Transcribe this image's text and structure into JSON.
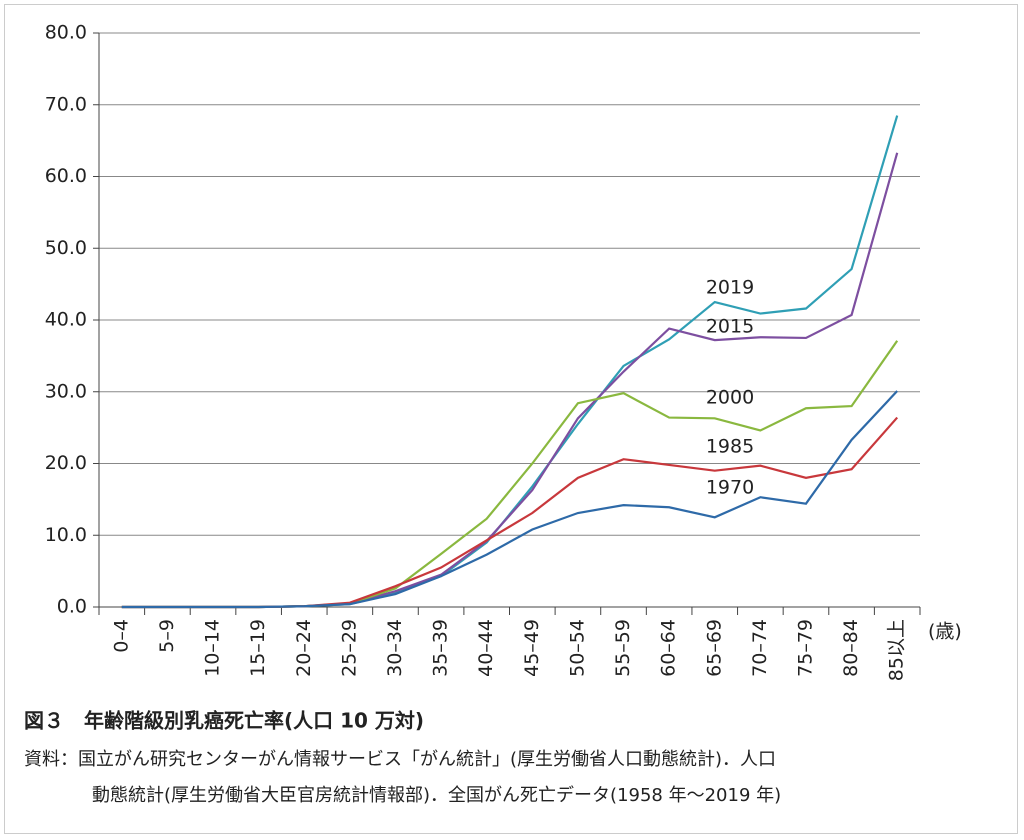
{
  "chart_data": {
    "type": "line",
    "categories": [
      "0–4",
      "5–9",
      "10–14",
      "15–19",
      "20–24",
      "25–29",
      "30–34",
      "35–39",
      "40–44",
      "45–49",
      "50–54",
      "55–59",
      "60–64",
      "65–69",
      "70–74",
      "75–79",
      "80–84",
      "85以上"
    ],
    "x_unit": "(歳)",
    "ylim": [
      0,
      80
    ],
    "yticks": [
      {
        "value": 0,
        "label": "0.0"
      },
      {
        "value": 10,
        "label": "10.0"
      },
      {
        "value": 20,
        "label": "20.0"
      },
      {
        "value": 30,
        "label": "30.0"
      },
      {
        "value": 40,
        "label": "40.0"
      },
      {
        "value": 50,
        "label": "50.0"
      },
      {
        "value": 60,
        "label": "60.0"
      },
      {
        "value": 70,
        "label": "70.0"
      },
      {
        "value": 80,
        "label": "80.0"
      }
    ],
    "grid": true,
    "series": [
      {
        "name": "2019",
        "color": "#2f9fb5",
        "values": [
          0,
          0,
          0,
          0,
          0.1,
          0.4,
          2.0,
          4.3,
          9.0,
          16.8,
          25.5,
          33.6,
          37.3,
          42.5,
          40.9,
          41.6,
          47.1,
          68.5
        ]
      },
      {
        "name": "2015",
        "color": "#7d4fa0",
        "values": [
          0,
          0,
          0,
          0,
          0.1,
          0.5,
          2.2,
          4.5,
          9.2,
          16.3,
          26.3,
          32.8,
          38.8,
          37.2,
          37.6,
          37.5,
          40.7,
          63.3
        ]
      },
      {
        "name": "2000",
        "color": "#8ab83f",
        "values": [
          0,
          0,
          0,
          0,
          0.1,
          0.5,
          2.6,
          7.4,
          12.3,
          20.0,
          28.4,
          29.8,
          26.4,
          26.3,
          24.6,
          27.7,
          28.0,
          37.1
        ]
      },
      {
        "name": "1985",
        "color": "#c8383c",
        "values": [
          0,
          0,
          0,
          0,
          0.1,
          0.6,
          2.9,
          5.5,
          9.3,
          13.1,
          18.0,
          20.6,
          19.8,
          19.0,
          19.7,
          18.0,
          19.2,
          26.4
        ]
      },
      {
        "name": "1970",
        "color": "#2e6aa8",
        "values": [
          0,
          0,
          0,
          0,
          0.1,
          0.4,
          1.8,
          4.3,
          7.3,
          10.8,
          13.1,
          14.2,
          13.9,
          12.5,
          15.3,
          14.4,
          23.3,
          30.1
        ]
      }
    ],
    "caption": "図３　年齢階級別乳癌死亡率(人口 10 万対)",
    "notes": [
      "資料：国立がん研究センターがん情報サービス「がん統計」(厚生労働省人口動態統計)．人口",
      "動態統計(厚生労働省大臣官房統計情報部)．全国がん死亡データ(1958 年～2019 年)"
    ]
  }
}
